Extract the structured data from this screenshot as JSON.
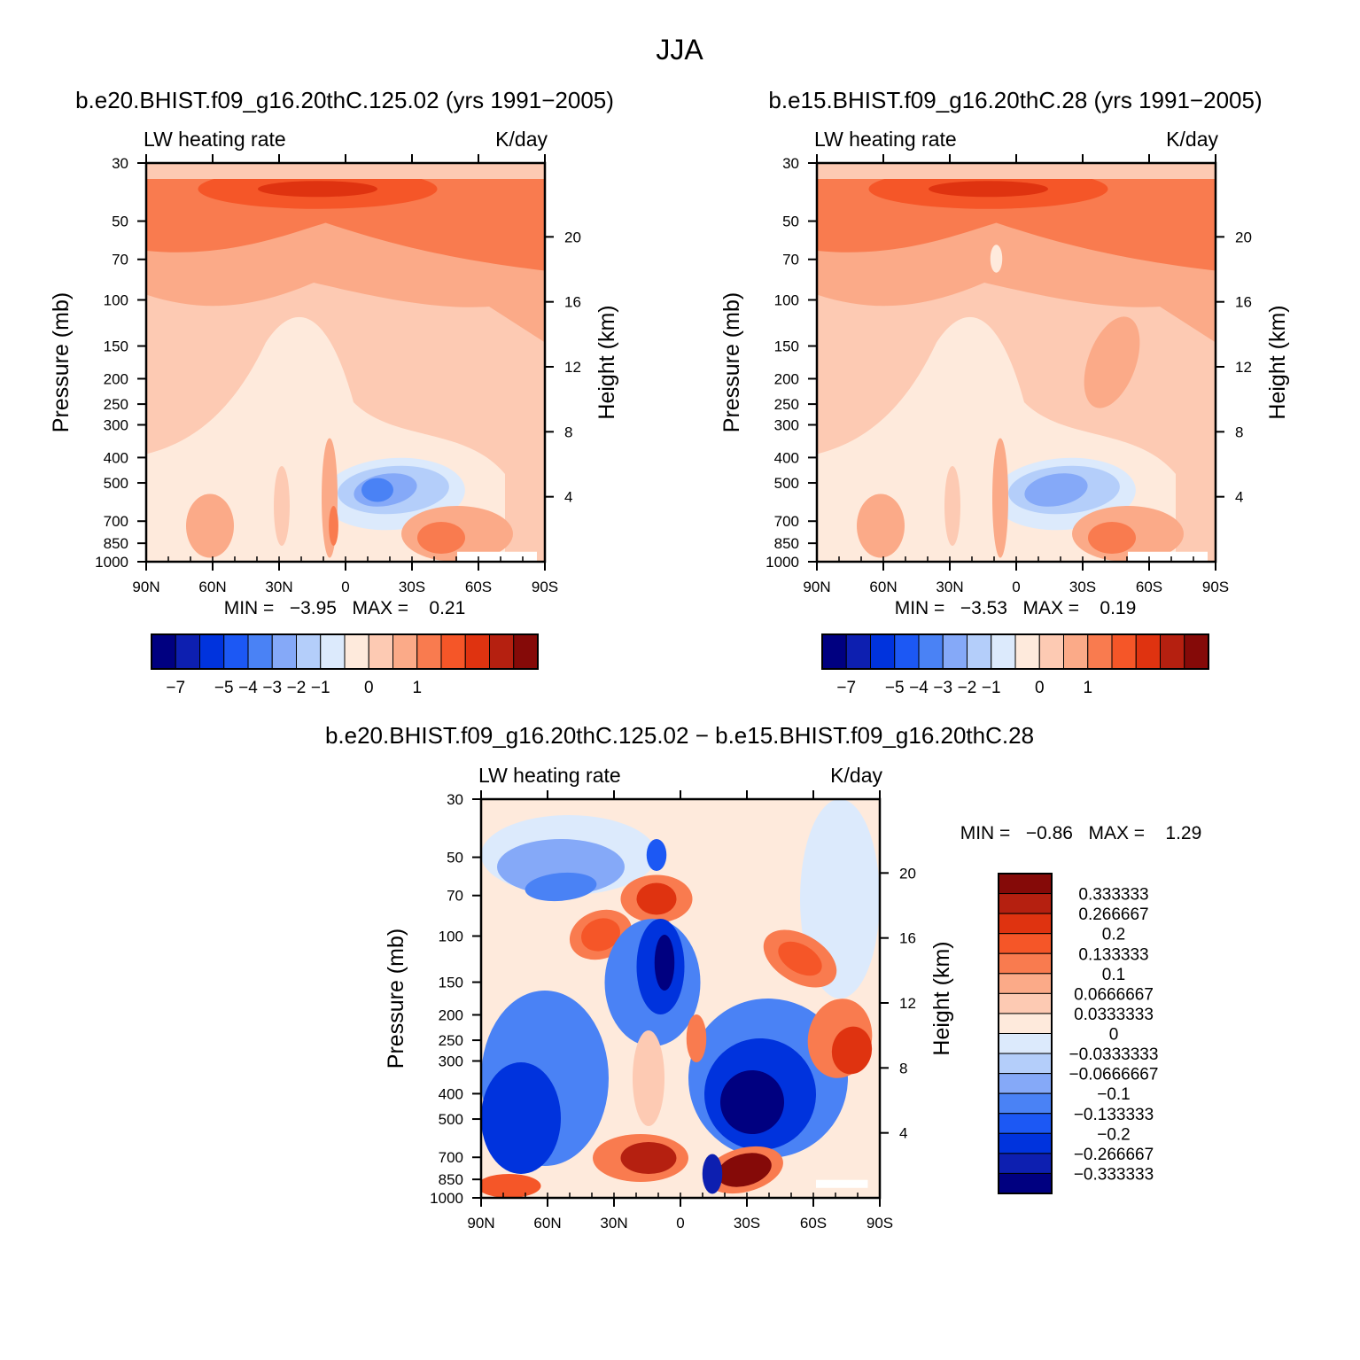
{
  "figure": {
    "title": "JJA",
    "colors": {
      "diverging": [
        "#000080",
        "#0d1fb0",
        "#0033dd",
        "#1c58f4",
        "#4a82f5",
        "#85a9f8",
        "#b4cefa",
        "#dceafc",
        "#feeadc",
        "#fdcab3",
        "#fbaa88",
        "#f97b4f",
        "#f55628",
        "#df3310",
        "#b52010",
        "#850a08"
      ],
      "white": "#ffffff"
    },
    "panels": [
      {
        "title": "b.e20.BHIST.f09_g16.20thC.125.02 (yrs 1991−2005)",
        "field_label": "LW heating rate",
        "units_label": "K/day",
        "min_max_text": "MIN =   −3.95   MAX =    0.21"
      },
      {
        "title": "b.e15.BHIST.f09_g16.20thC.28 (yrs 1991−2005)",
        "field_label": "LW heating rate",
        "units_label": "K/day",
        "min_max_text": "MIN =   −3.53   MAX =    0.19"
      },
      {
        "title": "b.e20.BHIST.f09_g16.20thC.125.02 − b.e15.BHIST.f09_g16.20thC.28",
        "field_label": "LW heating rate",
        "units_label": "K/day",
        "min_max_text": "MIN =   −0.86   MAX =    1.29"
      }
    ]
  },
  "chart_data": [
    {
      "type": "heatmap",
      "title": "b.e20.BHIST.f09_g16.20thC.125.02 (yrs 1991−2005)",
      "xlabel": "",
      "ylabel": "Pressure (mb)",
      "y2label": "Height (km)",
      "x_ticks": [
        "90N",
        "60N",
        "30N",
        "0",
        "30S",
        "60S",
        "90S"
      ],
      "y_ticks": [
        "30",
        "50",
        "70",
        "100",
        "150",
        "200",
        "250",
        "300",
        "400",
        "500",
        "700",
        "850",
        "1000"
      ],
      "y_tick_values": [
        30,
        50,
        70,
        100,
        150,
        200,
        250,
        300,
        400,
        500,
        700,
        850,
        1000
      ],
      "y2_ticks": [
        "20",
        "16",
        "12",
        "8",
        "4"
      ],
      "y2_tick_values": [
        20,
        16,
        12,
        8,
        4
      ],
      "ylim": [
        30,
        1000
      ],
      "min": -3.95,
      "max": 0.21,
      "colorbar_labels": [
        "−7",
        "−5",
        "−4",
        "−3",
        "−2",
        "−1",
        "0",
        "1"
      ]
    },
    {
      "type": "heatmap",
      "title": "b.e15.BHIST.f09_g16.20thC.28 (yrs 1991−2005)",
      "xlabel": "",
      "ylabel": "Pressure (mb)",
      "y2label": "Height (km)",
      "x_ticks": [
        "90N",
        "60N",
        "30N",
        "0",
        "30S",
        "60S",
        "90S"
      ],
      "y_ticks": [
        "30",
        "50",
        "70",
        "100",
        "150",
        "200",
        "250",
        "300",
        "400",
        "500",
        "700",
        "850",
        "1000"
      ],
      "y_tick_values": [
        30,
        50,
        70,
        100,
        150,
        200,
        250,
        300,
        400,
        500,
        700,
        850,
        1000
      ],
      "y2_ticks": [
        "20",
        "16",
        "12",
        "8",
        "4"
      ],
      "y2_tick_values": [
        20,
        16,
        12,
        8,
        4
      ],
      "ylim": [
        30,
        1000
      ],
      "min": -3.53,
      "max": 0.19,
      "colorbar_labels": [
        "−7",
        "−5",
        "−4",
        "−3",
        "−2",
        "−1",
        "0",
        "1"
      ]
    },
    {
      "type": "heatmap",
      "title": "b.e20.BHIST.f09_g16.20thC.125.02 − b.e15.BHIST.f09_g16.20thC.28",
      "xlabel": "",
      "ylabel": "Pressure (mb)",
      "y2label": "Height (km)",
      "x_ticks": [
        "90N",
        "60N",
        "30N",
        "0",
        "30S",
        "60S",
        "90S"
      ],
      "y_ticks": [
        "30",
        "50",
        "70",
        "100",
        "150",
        "200",
        "250",
        "300",
        "400",
        "500",
        "700",
        "850",
        "1000"
      ],
      "y_tick_values": [
        30,
        50,
        70,
        100,
        150,
        200,
        250,
        300,
        400,
        500,
        700,
        850,
        1000
      ],
      "y2_ticks": [
        "20",
        "16",
        "12",
        "8",
        "4"
      ],
      "y2_tick_values": [
        20,
        16,
        12,
        8,
        4
      ],
      "ylim": [
        30,
        1000
      ],
      "min": -0.86,
      "max": 1.29,
      "colorbar_labels": [
        "0.333333",
        "0.266667",
        "0.2",
        "0.133333",
        "0.1",
        "0.0666667",
        "0.0333333",
        "0",
        "−0.0333333",
        "−0.0666667",
        "−0.1",
        "−0.133333",
        "−0.2",
        "−0.266667",
        "−0.333333"
      ]
    }
  ]
}
